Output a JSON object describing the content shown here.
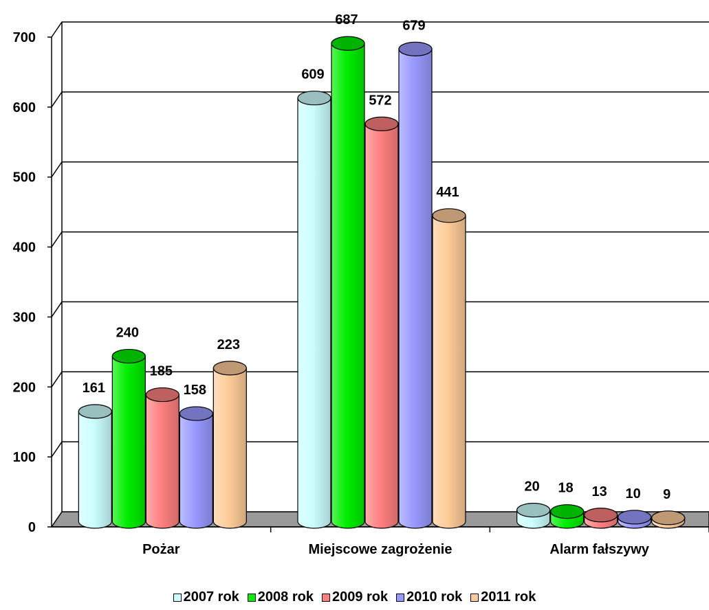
{
  "chart_data": {
    "type": "bar",
    "title": "",
    "xlabel": "",
    "ylabel": "",
    "categories": [
      "Pożar",
      "Miejscowe zagrożenie",
      "Alarm fałszywy"
    ],
    "ylim": [
      0,
      700
    ],
    "yticks": [
      "0",
      "100",
      "200",
      "300",
      "400",
      "500",
      "600",
      "700"
    ],
    "grid": true,
    "legend_position": "bottom",
    "style": "3d-cylinder",
    "series": [
      {
        "name": "2007 rok",
        "color": "#ccffff",
        "values": [
          161,
          609,
          20
        ]
      },
      {
        "name": "2008 rok",
        "color": "#00ee00",
        "values": [
          240,
          687,
          18
        ]
      },
      {
        "name": "2009 rok",
        "color": "#ff8080",
        "values": [
          185,
          572,
          13
        ]
      },
      {
        "name": "2010 rok",
        "color": "#9999ff",
        "values": [
          158,
          679,
          10
        ]
      },
      {
        "name": "2011 rok",
        "color": "#ffcc99",
        "values": [
          223,
          441,
          9
        ]
      }
    ]
  }
}
